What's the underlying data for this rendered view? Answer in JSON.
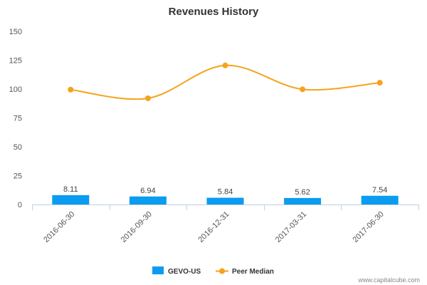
{
  "chart_data": {
    "type": "bar",
    "title": "Revenues History",
    "categories": [
      "2016-06-30",
      "2016-09-30",
      "2016-12-31",
      "2017-03-31",
      "2017-06-30"
    ],
    "ylim": [
      0,
      150
    ],
    "yticks": [
      0,
      25,
      50,
      75,
      100,
      125,
      150
    ],
    "grid": false,
    "legend_position": "bottom-center",
    "series": [
      {
        "name": "GEVO-US",
        "kind": "bar",
        "color": "#0a9cf0",
        "values": [
          8.11,
          6.94,
          5.84,
          5.62,
          7.54
        ],
        "labels": [
          "8.11",
          "6.94",
          "5.84",
          "5.62",
          "7.54"
        ]
      },
      {
        "name": "Peer Median",
        "kind": "line",
        "color": "#f5a31a",
        "values": [
          99.5,
          92.0,
          120.5,
          99.8,
          105.5
        ]
      }
    ]
  },
  "watermark": "www.capitalcube.com"
}
